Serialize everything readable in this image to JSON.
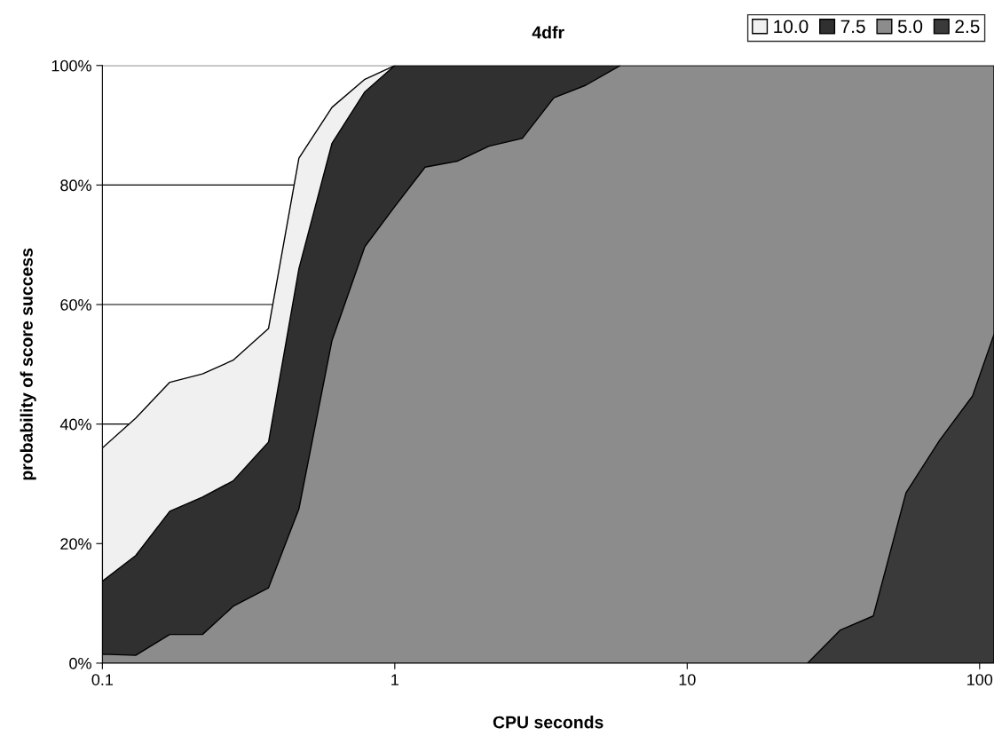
{
  "chart_data": {
    "type": "area",
    "title": "4dfr",
    "xlabel": "CPU seconds",
    "ylabel": "probability of score success",
    "log": "x",
    "xlim": [
      0.1,
      112
    ],
    "xticks": [
      0.1,
      1,
      10,
      100
    ],
    "ylim": [
      0,
      100
    ],
    "yticks": [
      {
        "value": 0,
        "label": "0%"
      },
      {
        "value": 20,
        "label": "20%"
      },
      {
        "value": 40,
        "label": "40%"
      },
      {
        "value": 60,
        "label": "60%"
      },
      {
        "value": 80,
        "label": "80%"
      },
      {
        "value": 100,
        "label": "100%"
      }
    ],
    "grid": "y",
    "legend": "top right",
    "series": [
      {
        "name": "10.0",
        "color": "#f0f0f0",
        "x": [
          0.1,
          0.13,
          0.17,
          0.22,
          0.28,
          0.37,
          0.47,
          0.61,
          0.79,
          1.0
        ],
        "values": [
          36,
          41,
          47,
          48.4,
          50.7,
          56,
          84.5,
          93,
          97.7,
          100
        ]
      },
      {
        "name": "7.5",
        "color": "#303030",
        "x": [
          0.1,
          0.13,
          0.17,
          0.22,
          0.28,
          0.37,
          0.47,
          0.61,
          0.79,
          1.0,
          5.9
        ],
        "values": [
          13.7,
          18,
          25.4,
          27.8,
          30.5,
          37,
          66,
          87,
          95.6,
          100,
          100
        ]
      },
      {
        "name": "5.0",
        "color": "#8c8c8c",
        "x": [
          0.1,
          0.13,
          0.17,
          0.22,
          0.28,
          0.37,
          0.47,
          0.61,
          0.79,
          1.0,
          1.27,
          1.64,
          2.1,
          2.73,
          3.5,
          4.5,
          5.9,
          112
        ],
        "values": [
          1.5,
          1.3,
          4.8,
          4.8,
          9.5,
          12.6,
          25.8,
          54,
          69.7,
          76.4,
          83,
          84,
          86.5,
          87.8,
          94.6,
          96.7,
          100,
          100
        ]
      },
      {
        "name": "2.5",
        "color": "#3a3a3a",
        "x": [
          25.8,
          33.3,
          43.3,
          56,
          73,
          94.6,
          112
        ],
        "values": [
          0,
          5.5,
          7.9,
          28.5,
          37.3,
          44.7,
          55
        ]
      }
    ]
  }
}
